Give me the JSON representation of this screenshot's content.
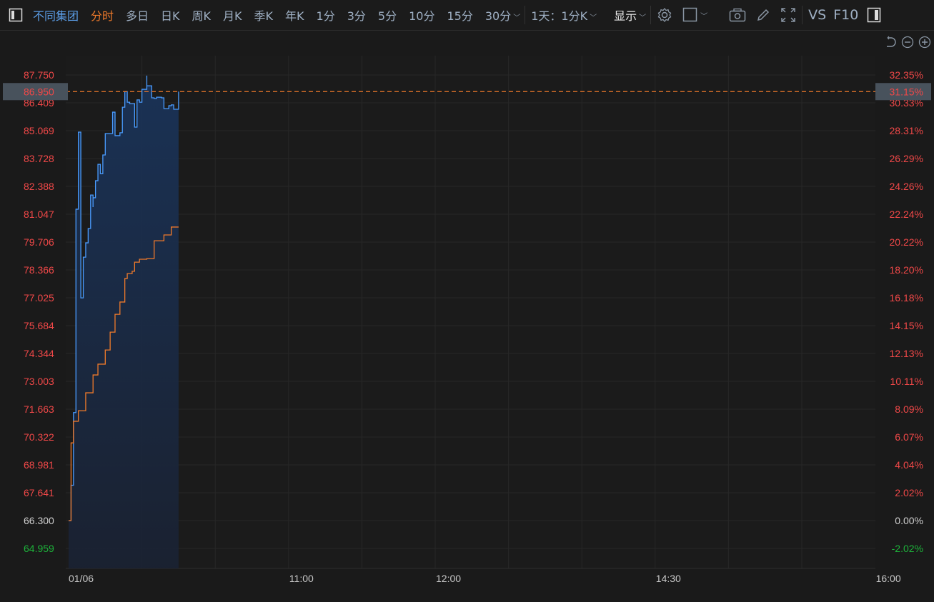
{
  "toolbar": {
    "symbol": "不同集团",
    "periods": [
      "分时",
      "多日",
      "日K",
      "周K",
      "月K",
      "季K",
      "年K",
      "1分",
      "3分",
      "5分",
      "10分",
      "15分",
      "30分"
    ],
    "active_period": "分时",
    "range_select": "1天：1分K",
    "display_label": "显示",
    "vs_label": "VS",
    "f10_label": "F10",
    "icons": [
      "panel-toggle-icon",
      "settings-gear-icon",
      "square-layout-icon",
      "camera-icon",
      "pencil-icon",
      "fullscreen-icon",
      "sidebar-icon",
      "reset-icon",
      "zoom-out-icon",
      "zoom-in-icon"
    ]
  },
  "colors": {
    "background": "#1a1a1a",
    "price_line": "#4a9cff",
    "avg_line": "#f07a2a",
    "up": "#f04848",
    "down": "#1db33a",
    "current": "#f07a2a"
  },
  "chart_data": {
    "type": "line",
    "date_label": "01/06",
    "x_ticks": [
      "01/06",
      "11:00",
      "12:00",
      "14:30",
      "16:00"
    ],
    "session": [
      [
        "09:30",
        "12:00"
      ],
      [
        "13:00",
        "16:00"
      ]
    ],
    "reference_price": 66.3,
    "current_price": "86.950",
    "current_pct": "31.15%",
    "y_ticks": [
      "87.750",
      "86.409",
      "85.069",
      "83.728",
      "82.388",
      "81.047",
      "79.706",
      "78.366",
      "77.025",
      "75.684",
      "74.344",
      "73.003",
      "71.663",
      "70.322",
      "68.981",
      "67.641",
      "66.300",
      "64.959"
    ],
    "y_pct_ticks": [
      "32.35%",
      "30.33%",
      "28.31%",
      "26.29%",
      "24.26%",
      "22.24%",
      "20.22%",
      "18.20%",
      "16.18%",
      "14.15%",
      "12.13%",
      "10.11%",
      "8.09%",
      "6.07%",
      "4.04%",
      "2.02%",
      "0.00%",
      "-2.02%"
    ],
    "ylim": [
      64.959,
      87.75
    ],
    "grid": true,
    "series": [
      {
        "key": "price",
        "values": [
          [
            "09:30",
            66.3
          ],
          [
            "09:31",
            68.0
          ],
          [
            "09:32",
            71.5
          ],
          [
            "09:33",
            78.74
          ],
          [
            "09:33",
            81.29
          ],
          [
            "09:34",
            83.69
          ],
          [
            "09:34",
            85.0
          ],
          [
            "09:35",
            81.05
          ],
          [
            "09:35",
            78.4
          ],
          [
            "09:35",
            77.02
          ],
          [
            "09:36",
            77.95
          ],
          [
            "09:36",
            78.98
          ],
          [
            "09:37",
            79.67
          ],
          [
            "09:38",
            80.36
          ],
          [
            "09:39",
            81.05
          ],
          [
            "09:39",
            81.97
          ],
          [
            "09:40",
            81.39
          ],
          [
            "09:40",
            81.84
          ],
          [
            "09:41",
            82.66
          ],
          [
            "09:42",
            83.45
          ],
          [
            "09:43",
            83.0
          ],
          [
            "09:44",
            83.9
          ],
          [
            "09:45",
            84.93
          ],
          [
            "09:47",
            84.93
          ],
          [
            "09:48",
            85.96
          ],
          [
            "09:49",
            84.83
          ],
          [
            "09:51",
            84.97
          ],
          [
            "09:52",
            86.2
          ],
          [
            "09:53",
            86.95
          ],
          [
            "09:54",
            86.44
          ],
          [
            "09:55",
            86.37
          ],
          [
            "09:57",
            85.24
          ],
          [
            "09:58",
            86.55
          ],
          [
            "09:59",
            86.44
          ],
          [
            "10:00",
            87.06
          ],
          [
            "10:02",
            87.72
          ],
          [
            "10:02",
            87.23
          ],
          [
            "10:04",
            86.65
          ],
          [
            "10:05",
            86.62
          ],
          [
            "10:06",
            86.68
          ],
          [
            "10:08",
            86.65
          ],
          [
            "10:09",
            86.13
          ],
          [
            "10:11",
            86.27
          ],
          [
            "10:12",
            86.31
          ],
          [
            "10:13",
            86.1
          ],
          [
            "10:14",
            86.1
          ],
          [
            "10:15",
            86.95
          ]
        ]
      },
      {
        "key": "average",
        "values": [
          [
            "09:30",
            66.3
          ],
          [
            "09:31",
            70.04
          ],
          [
            "09:32",
            71.08
          ],
          [
            "09:34",
            71.59
          ],
          [
            "09:37",
            72.45
          ],
          [
            "09:40",
            73.31
          ],
          [
            "09:42",
            73.83
          ],
          [
            "09:45",
            74.51
          ],
          [
            "09:47",
            75.37
          ],
          [
            "09:49",
            76.23
          ],
          [
            "09:51",
            76.82
          ],
          [
            "09:53",
            77.95
          ],
          [
            "09:54",
            78.19
          ],
          [
            "09:56",
            78.3
          ],
          [
            "09:57",
            78.74
          ],
          [
            "09:59",
            78.88
          ],
          [
            "10:02",
            78.91
          ],
          [
            "10:05",
            79.77
          ],
          [
            "10:08",
            79.77
          ],
          [
            "10:09",
            80.05
          ],
          [
            "10:11",
            80.05
          ],
          [
            "10:12",
            80.43
          ],
          [
            "10:15",
            80.43
          ]
        ]
      }
    ]
  }
}
